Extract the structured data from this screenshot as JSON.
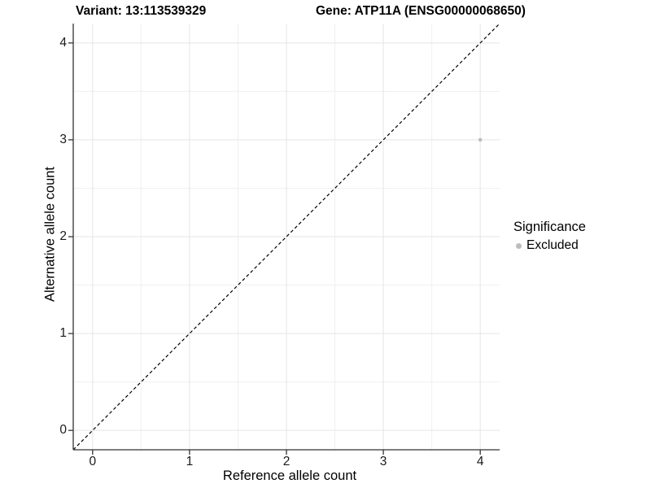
{
  "titles": {
    "variant": "Variant: 13:113539329",
    "gene": "Gene: ATP11A (ENSG00000068650)"
  },
  "legend": {
    "title": "Significance",
    "items": [
      {
        "label": "Excluded",
        "color": "#bdbdbd"
      }
    ]
  },
  "colors": {
    "background": "#ffffff",
    "grid_major": "#e5e5e5",
    "grid_minor": "#f0f0f0",
    "axis": "#333333",
    "tick_text": "#1a1a1a",
    "reference_line": "#000000",
    "point": "#bdbdbd"
  },
  "chart_data": {
    "type": "scatter",
    "title": "Variant: 13:113539329   Gene: ATP11A (ENSG00000068650)",
    "xlabel": "Reference allele count",
    "ylabel": "Alternative allele count",
    "xlim": [
      -0.2,
      4.2
    ],
    "ylim": [
      -0.2,
      4.2
    ],
    "x_ticks": [
      0,
      1,
      2,
      3,
      4
    ],
    "y_ticks": [
      0,
      1,
      2,
      3,
      4
    ],
    "grid": {
      "major": true,
      "minor": true
    },
    "legend_position": "right-center",
    "series": [
      {
        "name": "Excluded",
        "color": "#bdbdbd",
        "points": [
          {
            "x": 4,
            "y": 3
          }
        ]
      }
    ],
    "reference_line": {
      "slope": 1,
      "intercept": 0,
      "style": "dashed",
      "color": "#000000"
    }
  }
}
